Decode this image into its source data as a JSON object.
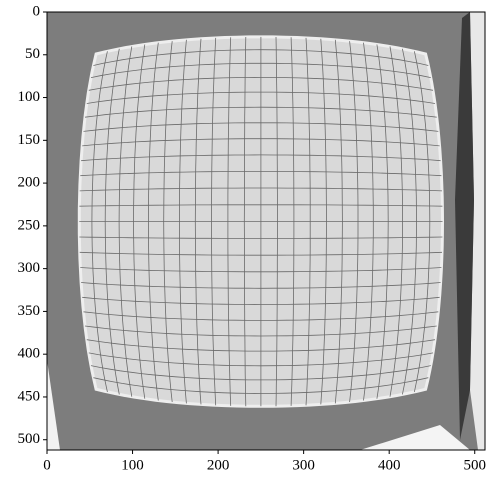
{
  "chart_data": {
    "type": "image",
    "xlim": [
      0,
      512
    ],
    "ylim": [
      512,
      0
    ],
    "xticks": [
      0,
      100,
      200,
      300,
      400,
      500
    ],
    "yticks": [
      0,
      50,
      100,
      150,
      200,
      250,
      300,
      350,
      400,
      450,
      500
    ]
  }
}
